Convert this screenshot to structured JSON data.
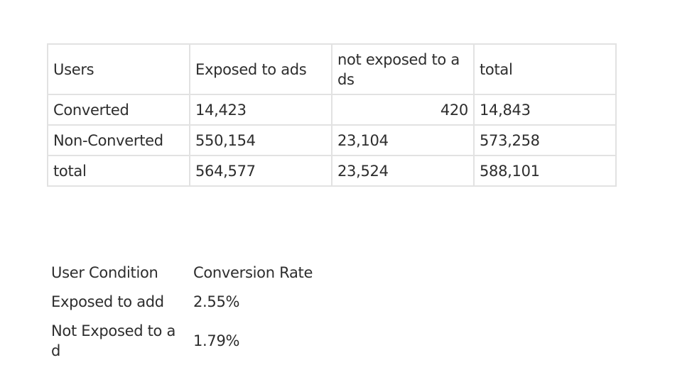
{
  "contingency_table": {
    "headers": [
      "Users",
      "Exposed to ads",
      "not exposed to a ds",
      "total"
    ],
    "rows": [
      [
        "Converted",
        "14,423",
        "420",
        "14,843"
      ],
      [
        "Non-Converted",
        "550,154",
        "23,104",
        "573,258"
      ],
      [
        "total",
        "564,577",
        "23,524",
        "588,101"
      ]
    ]
  },
  "conversion_table": {
    "headers": [
      "User Condition",
      "Conversion Rate"
    ],
    "rows": [
      [
        "Exposed to add",
        "2.55%"
      ],
      [
        "Not Exposed to a d",
        "1.79%"
      ]
    ]
  }
}
